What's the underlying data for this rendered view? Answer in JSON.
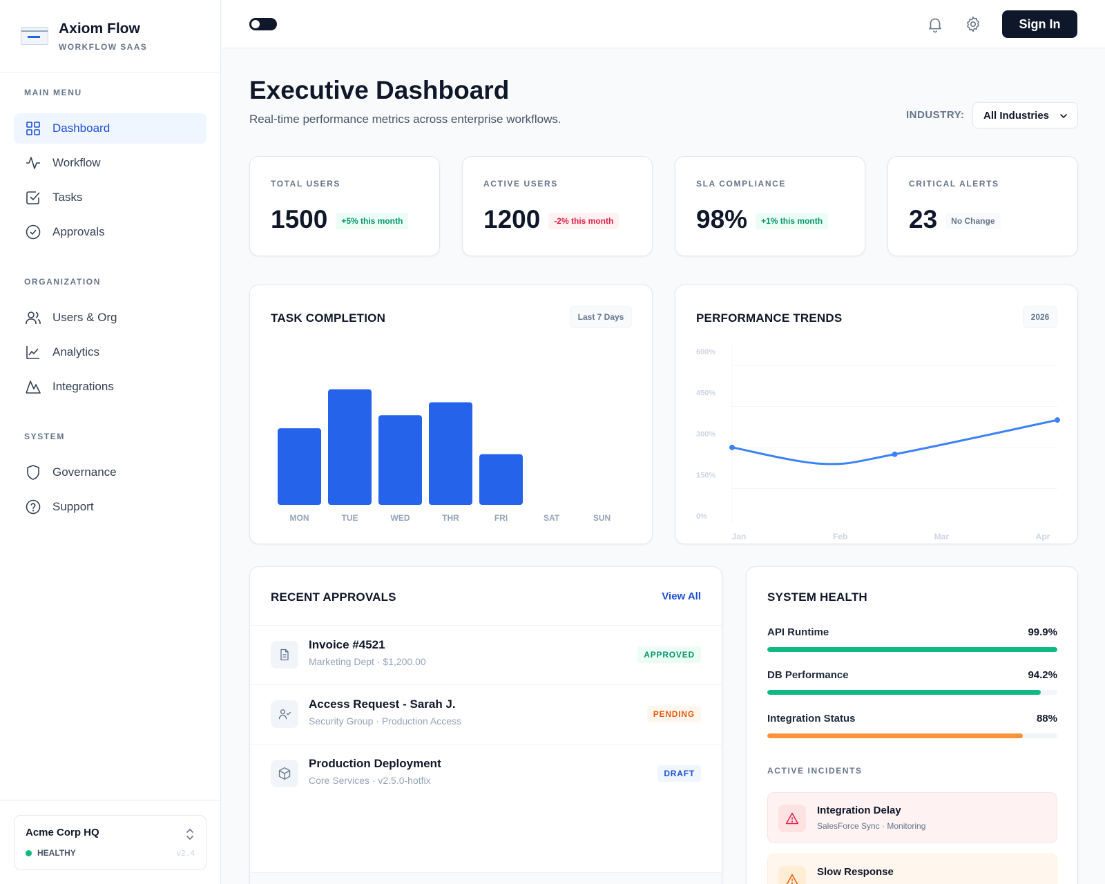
{
  "brand": {
    "name": "Axiom Flow",
    "subtitle": "WORKFLOW SAAS"
  },
  "sidebar": {
    "sections": [
      {
        "title": "MAIN MENU",
        "items": [
          {
            "label": "Dashboard",
            "icon": "grid-icon",
            "active": true
          },
          {
            "label": "Workflow",
            "icon": "activity-icon"
          },
          {
            "label": "Tasks",
            "icon": "check-square-icon"
          },
          {
            "label": "Approvals",
            "icon": "check-circle-icon"
          }
        ]
      },
      {
        "title": "ORGANIZATION",
        "items": [
          {
            "label": "Users & Org",
            "icon": "users-icon"
          },
          {
            "label": "Analytics",
            "icon": "line-chart-icon"
          },
          {
            "label": "Integrations",
            "icon": "mountain-icon"
          }
        ]
      },
      {
        "title": "SYSTEM",
        "items": [
          {
            "label": "Governance",
            "icon": "shield-icon"
          },
          {
            "label": "Support",
            "icon": "help-circle-icon"
          }
        ]
      }
    ],
    "workspace": {
      "name": "Acme Corp HQ",
      "status": "HEALTHY",
      "version": "v2.4",
      "status_color": "#10b981"
    }
  },
  "topbar": {
    "signin_label": "Sign In",
    "icons": [
      "bell-icon",
      "gear-icon"
    ]
  },
  "header": {
    "title": "Executive Dashboard",
    "subtitle": "Real-time performance metrics across enterprise workflows.",
    "industry_label": "INDUSTRY:",
    "industry_value": "All Industries"
  },
  "kpis": [
    {
      "label": "TOTAL USERS",
      "value": "1500",
      "badge": "+5% this month",
      "trend": "up"
    },
    {
      "label": "ACTIVE USERS",
      "value": "1200",
      "badge": "-2% this month",
      "trend": "down"
    },
    {
      "label": "SLA COMPLIANCE",
      "value": "98%",
      "badge": "+1% this month",
      "trend": "up"
    },
    {
      "label": "CRITICAL ALERTS",
      "value": "23",
      "badge": "No Change",
      "trend": "flat"
    }
  ],
  "task_chart": {
    "title": "TASK COMPLETION",
    "range": "Last 7 Days"
  },
  "trend_chart": {
    "title": "PERFORMANCE TRENDS",
    "range": "2026"
  },
  "chart_data": [
    {
      "type": "bar",
      "title": "TASK COMPLETION",
      "categories": [
        "MON",
        "TUE",
        "WED",
        "THR",
        "FRI",
        "SAT",
        "SUN"
      ],
      "values": [
        59,
        89,
        69,
        79,
        39,
        0,
        0
      ],
      "ylim": [
        0,
        100
      ],
      "color": "#2563eb",
      "grid": false
    },
    {
      "type": "line",
      "title": "PERFORMANCE TRENDS",
      "x": [
        "Jan",
        "Feb",
        "Mar",
        "Apr"
      ],
      "series": [
        {
          "values": [
            250,
            190,
            225,
            350
          ]
        }
      ],
      "yticks": [
        "600%",
        "450%",
        "300%",
        "150%",
        "0%"
      ],
      "ylim": [
        0,
        600
      ],
      "color": "#3b82f6",
      "grid": true
    }
  ],
  "approvals": {
    "title": "RECENT APPROVALS",
    "view_all": "View All",
    "items": [
      {
        "title": "Invoice #4521",
        "meta": "Marketing Dept · $1,200.00",
        "status": "APPROVED",
        "icon": "file-icon"
      },
      {
        "title": "Access Request - Sarah J.",
        "meta": "Security Group · Production Access",
        "status": "PENDING",
        "icon": "user-check-icon"
      },
      {
        "title": "Production Deployment",
        "meta": "Core Services · v2.5.0-hotfix",
        "status": "DRAFT",
        "icon": "package-icon"
      }
    ]
  },
  "health": {
    "title": "SYSTEM HEALTH",
    "metrics": [
      {
        "label": "API Runtime",
        "value": "99.9%",
        "fill": 0.999,
        "color": "#10b981"
      },
      {
        "label": "DB Performance",
        "value": "94.2%",
        "fill": 0.942,
        "color": "#10b981"
      },
      {
        "label": "Integration Status",
        "value": "88%",
        "fill": 0.88,
        "color": "#fb923c"
      }
    ],
    "incidents_title": "ACTIVE INCIDENTS",
    "incidents": [
      {
        "title": "Integration Delay",
        "meta": "SalesForce Sync · Monitoring",
        "color": "#e11d48"
      },
      {
        "title": "Slow Response",
        "meta": "",
        "color": "#ea580c"
      }
    ]
  }
}
